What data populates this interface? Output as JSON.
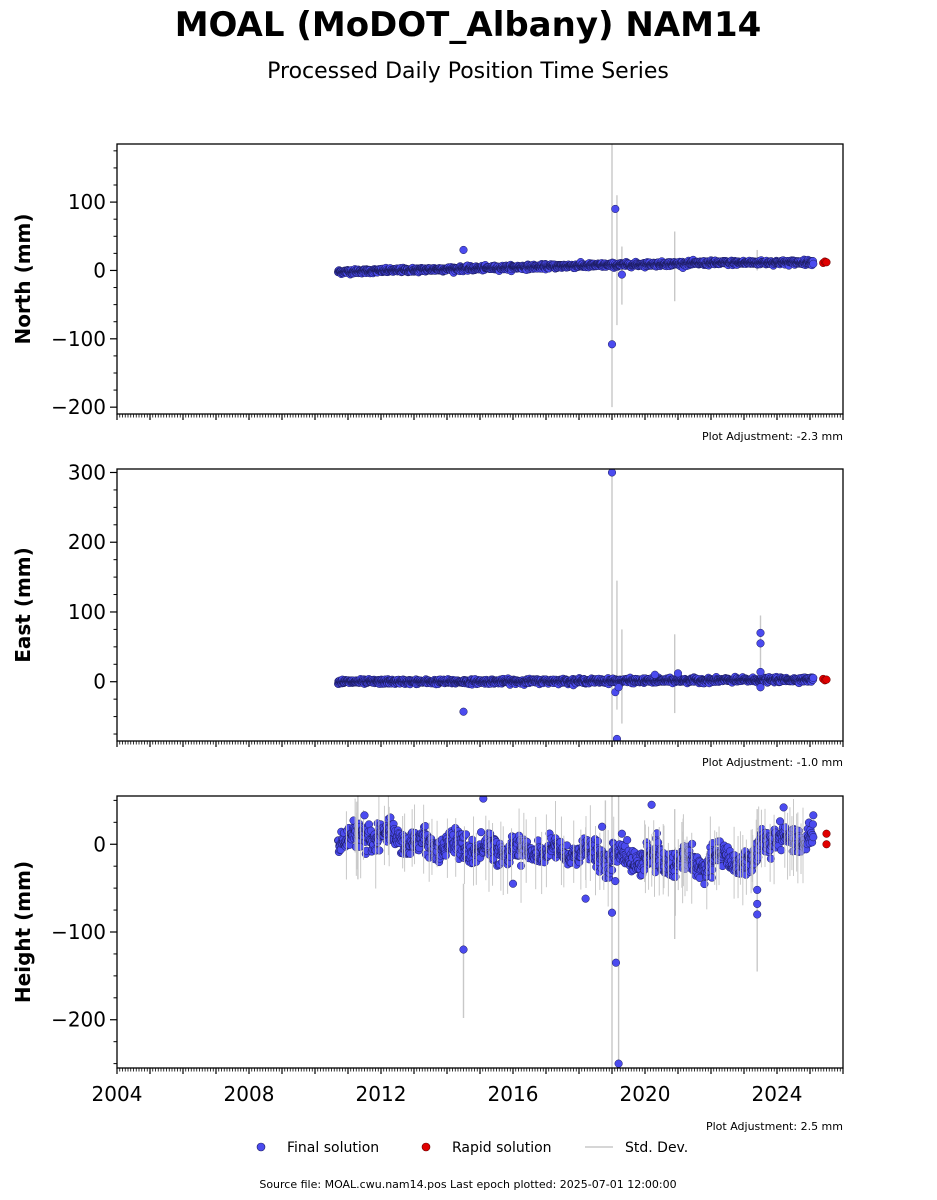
{
  "title": "MOAL (MoDOT_Albany) NAM14",
  "subtitle": "Processed Daily Position Time Series",
  "source_note": "Source file: MOAL.cwu.nam14.pos  Last epoch plotted: 2025-07-01 12:00:00",
  "legend": {
    "final": "Final solution",
    "rapid": "Rapid solution",
    "std": "Std. Dev."
  },
  "colors": {
    "final": "#4b4bef",
    "final_edge": "#1a1a5a",
    "rapid": "#e00000",
    "std": "#c8c8c8"
  },
  "chart_data": [
    {
      "type": "scatter",
      "component": "north",
      "ylabel": "North (mm)",
      "adjustment": "Plot Adjustment: -2.3 mm",
      "xlim": [
        2004,
        2026
      ],
      "ylim": [
        -210,
        185
      ],
      "yticks": [
        100,
        0,
        -100,
        -200
      ],
      "ytick_labels": [
        "100",
        "0",
        "−100",
        "−200"
      ],
      "trend": [
        [
          2010.7,
          -2
        ],
        [
          2014,
          2
        ],
        [
          2018,
          7
        ],
        [
          2022,
          11
        ],
        [
          2025,
          12
        ]
      ],
      "outliers": [
        [
          2014.5,
          30
        ],
        [
          2019.1,
          90
        ],
        [
          2019.0,
          -108
        ],
        [
          2019.3,
          -6
        ]
      ],
      "stddev_bars": [
        [
          2019.0,
          -200,
          185
        ],
        [
          2019.15,
          -80,
          110
        ],
        [
          2019.3,
          -50,
          35
        ],
        [
          2020.9,
          -45,
          57
        ],
        [
          2023.4,
          0,
          30
        ]
      ],
      "rapid": [
        [
          2025.4,
          11
        ],
        [
          2025.45,
          13
        ],
        [
          2025.5,
          12
        ]
      ]
    },
    {
      "type": "scatter",
      "component": "east",
      "ylabel": "East (mm)",
      "adjustment": "Plot Adjustment: -1.0 mm",
      "xlim": [
        2004,
        2026
      ],
      "ylim": [
        -85,
        305
      ],
      "yticks": [
        300,
        200,
        100,
        0
      ],
      "ytick_labels": [
        "300",
        "200",
        "100",
        "0"
      ],
      "trend": [
        [
          2010.7,
          0
        ],
        [
          2014,
          0
        ],
        [
          2018,
          1
        ],
        [
          2022,
          2
        ],
        [
          2025,
          3
        ]
      ],
      "outliers": [
        [
          2014.5,
          -43
        ],
        [
          2019.0,
          300
        ],
        [
          2019.1,
          -15
        ],
        [
          2019.15,
          -82
        ],
        [
          2019.2,
          -8
        ],
        [
          2020.3,
          10
        ],
        [
          2021.0,
          12
        ],
        [
          2023.5,
          70
        ],
        [
          2023.5,
          55
        ],
        [
          2023.5,
          14
        ],
        [
          2023.5,
          -8
        ]
      ],
      "stddev_bars": [
        [
          2019.0,
          -85,
          305
        ],
        [
          2019.15,
          -40,
          145
        ],
        [
          2019.3,
          -60,
          75
        ],
        [
          2020.9,
          -45,
          68
        ],
        [
          2023.5,
          -5,
          95
        ]
      ],
      "rapid": [
        [
          2025.4,
          4
        ],
        [
          2025.45,
          2
        ],
        [
          2025.5,
          3
        ]
      ]
    },
    {
      "type": "scatter",
      "component": "height",
      "ylabel": "Height (mm)",
      "adjustment": "Plot Adjustment: 2.5 mm",
      "xlim": [
        2004,
        2026
      ],
      "ylim": [
        -255,
        55
      ],
      "yticks": [
        0,
        -100,
        -200
      ],
      "ytick_labels": [
        "0",
        "−100",
        "−200"
      ],
      "xticks": [
        2004,
        2008,
        2012,
        2016,
        2020,
        2024
      ],
      "xtick_labels": [
        "2004",
        "2008",
        "2012",
        "2016",
        "2020",
        "2024"
      ],
      "trend": [
        [
          2010.7,
          5
        ],
        [
          2012,
          8
        ],
        [
          2013,
          2
        ],
        [
          2015,
          -5
        ],
        [
          2017,
          -8
        ],
        [
          2018.5,
          -12
        ],
        [
          2020,
          -18
        ],
        [
          2021.5,
          -22
        ],
        [
          2022.5,
          -15
        ],
        [
          2023.3,
          -25
        ],
        [
          2023.5,
          8
        ],
        [
          2024.5,
          5
        ],
        [
          2025,
          10
        ]
      ],
      "outliers": [
        [
          2011.5,
          33
        ],
        [
          2014.5,
          -120
        ],
        [
          2015.1,
          52
        ],
        [
          2016,
          -45
        ],
        [
          2018.2,
          -62
        ],
        [
          2018.7,
          20
        ],
        [
          2019.0,
          -78
        ],
        [
          2019.1,
          -42
        ],
        [
          2019.12,
          -135
        ],
        [
          2019.2,
          -250
        ],
        [
          2019.3,
          12
        ],
        [
          2020.2,
          45
        ],
        [
          2023.4,
          -52
        ],
        [
          2023.4,
          -68
        ],
        [
          2023.4,
          -80
        ],
        [
          2024.2,
          42
        ],
        [
          2025.1,
          33
        ]
      ],
      "stddev_bars": [
        [
          2011.3,
          -40,
          55
        ],
        [
          2014.5,
          -198,
          -45
        ],
        [
          2018.8,
          -40,
          50
        ],
        [
          2019.0,
          -255,
          55
        ],
        [
          2019.2,
          -255,
          55
        ],
        [
          2020.9,
          -108,
          40
        ],
        [
          2023.4,
          -145,
          40
        ]
      ],
      "rapid": [
        [
          2025.5,
          12
        ],
        [
          2025.5,
          0
        ]
      ]
    }
  ]
}
